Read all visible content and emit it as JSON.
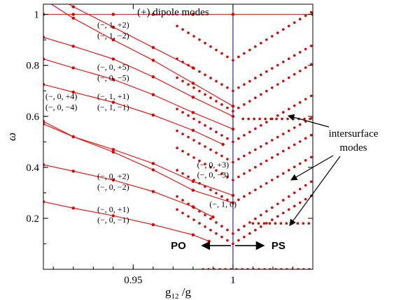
{
  "chart_data": {
    "type": "scatter",
    "xlabel": "g",
    "xlabel_sub": "12",
    "xlabel_tail": " /g",
    "ylabel": "ω",
    "xlim": [
      0.905,
      1.04
    ],
    "ylim": [
      0.0,
      1.04
    ],
    "x_ticks": [
      0.95,
      1
    ],
    "x_tick_labels": [
      "0.95",
      "1"
    ],
    "y_ticks": [
      0.2,
      0.4,
      0.6,
      0.8,
      1.0
    ],
    "y_tick_labels": [
      "0.2",
      "0.4",
      "0.6",
      "0.8",
      "1"
    ],
    "vertical_line_x": 1.0,
    "line_color": "#ff0000",
    "marker_color": "#e00000",
    "vline_color": "#000080",
    "series": [
      {
        "x": [
          0.905,
          0.92,
          0.94,
          0.96,
          0.98,
          0.988
        ],
        "y": [
          0.265,
          0.24,
          0.21,
          0.175,
          0.135,
          0.11
        ]
      },
      {
        "x": [
          0.905,
          0.92,
          0.94,
          0.96,
          0.98,
          0.99
        ],
        "y": [
          0.41,
          0.385,
          0.35,
          0.305,
          0.245,
          0.205
        ]
      },
      {
        "x": [
          0.905,
          0.92,
          0.94,
          0.96,
          0.98,
          1.0
        ],
        "y": [
          0.58,
          0.52,
          0.47,
          0.415,
          0.345,
          0.29
        ]
      },
      {
        "x": [
          0.905,
          0.92,
          0.94,
          0.96,
          0.98,
          1.0
        ],
        "y": [
          0.57,
          0.52,
          0.46,
          0.39,
          0.31,
          0.26
        ]
      },
      {
        "x": [
          0.905,
          0.92,
          0.94,
          0.96,
          0.98,
          0.995
        ],
        "y": [
          0.725,
          0.695,
          0.655,
          0.605,
          0.545,
          0.49
        ]
      },
      {
        "x": [
          0.905,
          0.92,
          0.94,
          0.96,
          0.98,
          1.0
        ],
        "y": [
          0.825,
          0.79,
          0.745,
          0.685,
          0.615,
          0.55
        ]
      },
      {
        "x": [
          0.905,
          0.92,
          0.94,
          0.96,
          0.98,
          1.0
        ],
        "y": [
          0.91,
          0.875,
          0.825,
          0.755,
          0.675,
          0.6
        ]
      },
      {
        "x": [
          0.905,
          0.92,
          0.94,
          0.96,
          0.98
        ],
        "y": [
          1.1,
          1.03,
          0.95,
          0.87,
          0.79
        ]
      },
      {
        "x": [
          0.905,
          0.92,
          0.94,
          0.96,
          0.98,
          1.0
        ],
        "y": [
          1.06,
          0.985,
          0.9,
          0.82,
          0.73,
          0.64
        ]
      },
      {
        "x": [
          0.905,
          0.92,
          0.94,
          0.96,
          0.98,
          1.0,
          1.04
        ],
        "y": [
          1.0,
          1.0,
          1.0,
          1.0,
          1.0,
          1.0,
          1.0
        ]
      }
    ],
    "vbranches": [
      {
        "min": 0.1,
        "a": 4.8
      },
      {
        "min": 0.14,
        "a": 5.2
      },
      {
        "min": 0.26,
        "a": 4.6
      },
      {
        "min": 0.35,
        "a": 4.5
      },
      {
        "min": 0.42,
        "a": 4.4
      },
      {
        "min": 0.5,
        "a": 4.6
      },
      {
        "min": 0.62,
        "a": 4.7
      },
      {
        "min": 0.7,
        "a": 4.5
      },
      {
        "min": 0.82,
        "a": 4.8
      }
    ],
    "flat_rows": [
      {
        "y": 0.0,
        "x0": 0.985,
        "x1": 1.04
      },
      {
        "y": 0.18,
        "x0": 1.01,
        "x1": 1.04
      },
      {
        "y": 0.59,
        "x0": 1.005,
        "x1": 1.04
      }
    ],
    "labels_minus": [
      {
        "text": "(−, 0, +1)",
        "x": 0.94,
        "y": 0.225
      },
      {
        "text": "(−, 0, −1)",
        "x": 0.94,
        "y": 0.183
      },
      {
        "text": "(−, 0, +2)",
        "x": 0.94,
        "y": 0.355
      },
      {
        "text": "(−, 0, −2)",
        "x": 0.94,
        "y": 0.312
      },
      {
        "text": "(−, 0, +3)",
        "x": 0.99,
        "y": 0.4
      },
      {
        "text": "(−, 0, −3)",
        "x": 0.99,
        "y": 0.36
      },
      {
        "text": "(−, 1, 0)",
        "x": 0.995,
        "y": 0.245
      },
      {
        "text": "(−, 0, +4)",
        "x": 0.914,
        "y": 0.668
      },
      {
        "text": "(−, 0, −4)",
        "x": 0.914,
        "y": 0.626
      },
      {
        "text": "(−, 1, +1)",
        "x": 0.94,
        "y": 0.668
      },
      {
        "text": "(−, 1, −1)",
        "x": 0.94,
        "y": 0.626
      },
      {
        "text": "(−, 0, +5)",
        "x": 0.94,
        "y": 0.783
      },
      {
        "text": "(−, 0, −5)",
        "x": 0.94,
        "y": 0.741
      },
      {
        "text": "(−, 1, +2)",
        "x": 0.94,
        "y": 0.948
      },
      {
        "text": "(−, 1, −2)",
        "x": 0.94,
        "y": 0.906
      }
    ],
    "label_dipole": "(+) dipole modes",
    "label_intersurface_1": "intersurface",
    "label_intersurface_2": "modes",
    "label_po": "PO",
    "label_ps": "PS"
  }
}
